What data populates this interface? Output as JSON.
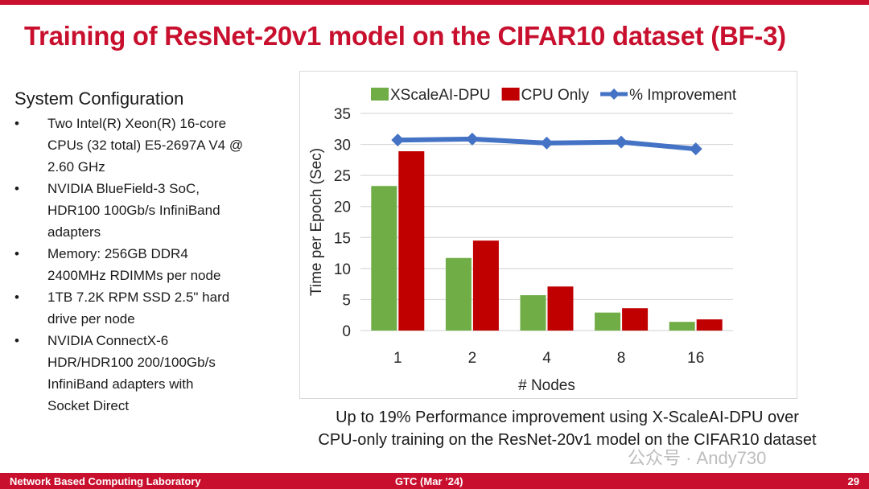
{
  "title": "Training of ResNet-20v1 model on the CIFAR10 dataset (BF-3)",
  "config": {
    "heading": "System Configuration",
    "items": [
      [
        "Two Intel(R) Xeon(R) 16-core",
        "CPUs (32 total) E5-2697A V4 @",
        "2.60 GHz"
      ],
      [
        "NVIDIA BlueField-3 SoC,",
        "HDR100 100Gb/s InfiniBand",
        "adapters"
      ],
      [
        "Memory: 256GB DDR4",
        "2400MHz RDIMMs per node"
      ],
      [
        "1TB 7.2K RPM SSD 2.5\" hard",
        "drive per node"
      ],
      [
        "NVIDIA ConnectX-6",
        "HDR/HDR100 200/100Gb/s",
        "InfiniBand adapters with",
        "Socket Direct"
      ]
    ]
  },
  "chart_data": {
    "type": "bar",
    "title": "",
    "xlabel": "# Nodes",
    "ylabel": "Time per Epoch (Sec)",
    "y2label": "",
    "categories": [
      "1",
      "2",
      "4",
      "8",
      "16"
    ],
    "ylim": [
      0,
      35
    ],
    "yticks": [
      "0",
      "5",
      "10",
      "15",
      "20",
      "25",
      "30",
      "35"
    ],
    "y2lim": [
      0,
      22
    ],
    "y2ticks": [
      "0%",
      "2%",
      "4%",
      "6%",
      "8%",
      "10%",
      "12%",
      "14%",
      "16%",
      "18%",
      "20%",
      "22%"
    ],
    "grid": true,
    "legend_position": "top",
    "series": [
      {
        "name": "XScaleAI-DPU",
        "type": "bar",
        "axis": "left",
        "color": "#70ad47",
        "values": [
          23.3,
          11.7,
          5.7,
          2.9,
          1.4
        ]
      },
      {
        "name": "CPU Only",
        "type": "bar",
        "axis": "left",
        "color": "#c00000",
        "values": [
          28.9,
          14.5,
          7.1,
          3.6,
          1.8
        ]
      },
      {
        "name": "% Improvement",
        "type": "line",
        "axis": "right",
        "color": "#4472c4",
        "marker": "diamond",
        "values": [
          19.3,
          19.4,
          19.0,
          19.1,
          18.4
        ]
      }
    ]
  },
  "caption": {
    "line1": "Up to 19% Performance improvement using X-ScaleAI-DPU over",
    "line2": "CPU-only training on the ResNet-20v1 model on the CIFAR10 dataset"
  },
  "watermark": "公众号 · Andy730",
  "footer": {
    "left": "Network Based Computing Laboratory",
    "center": "GTC (Mar ’24)",
    "page": "29"
  }
}
